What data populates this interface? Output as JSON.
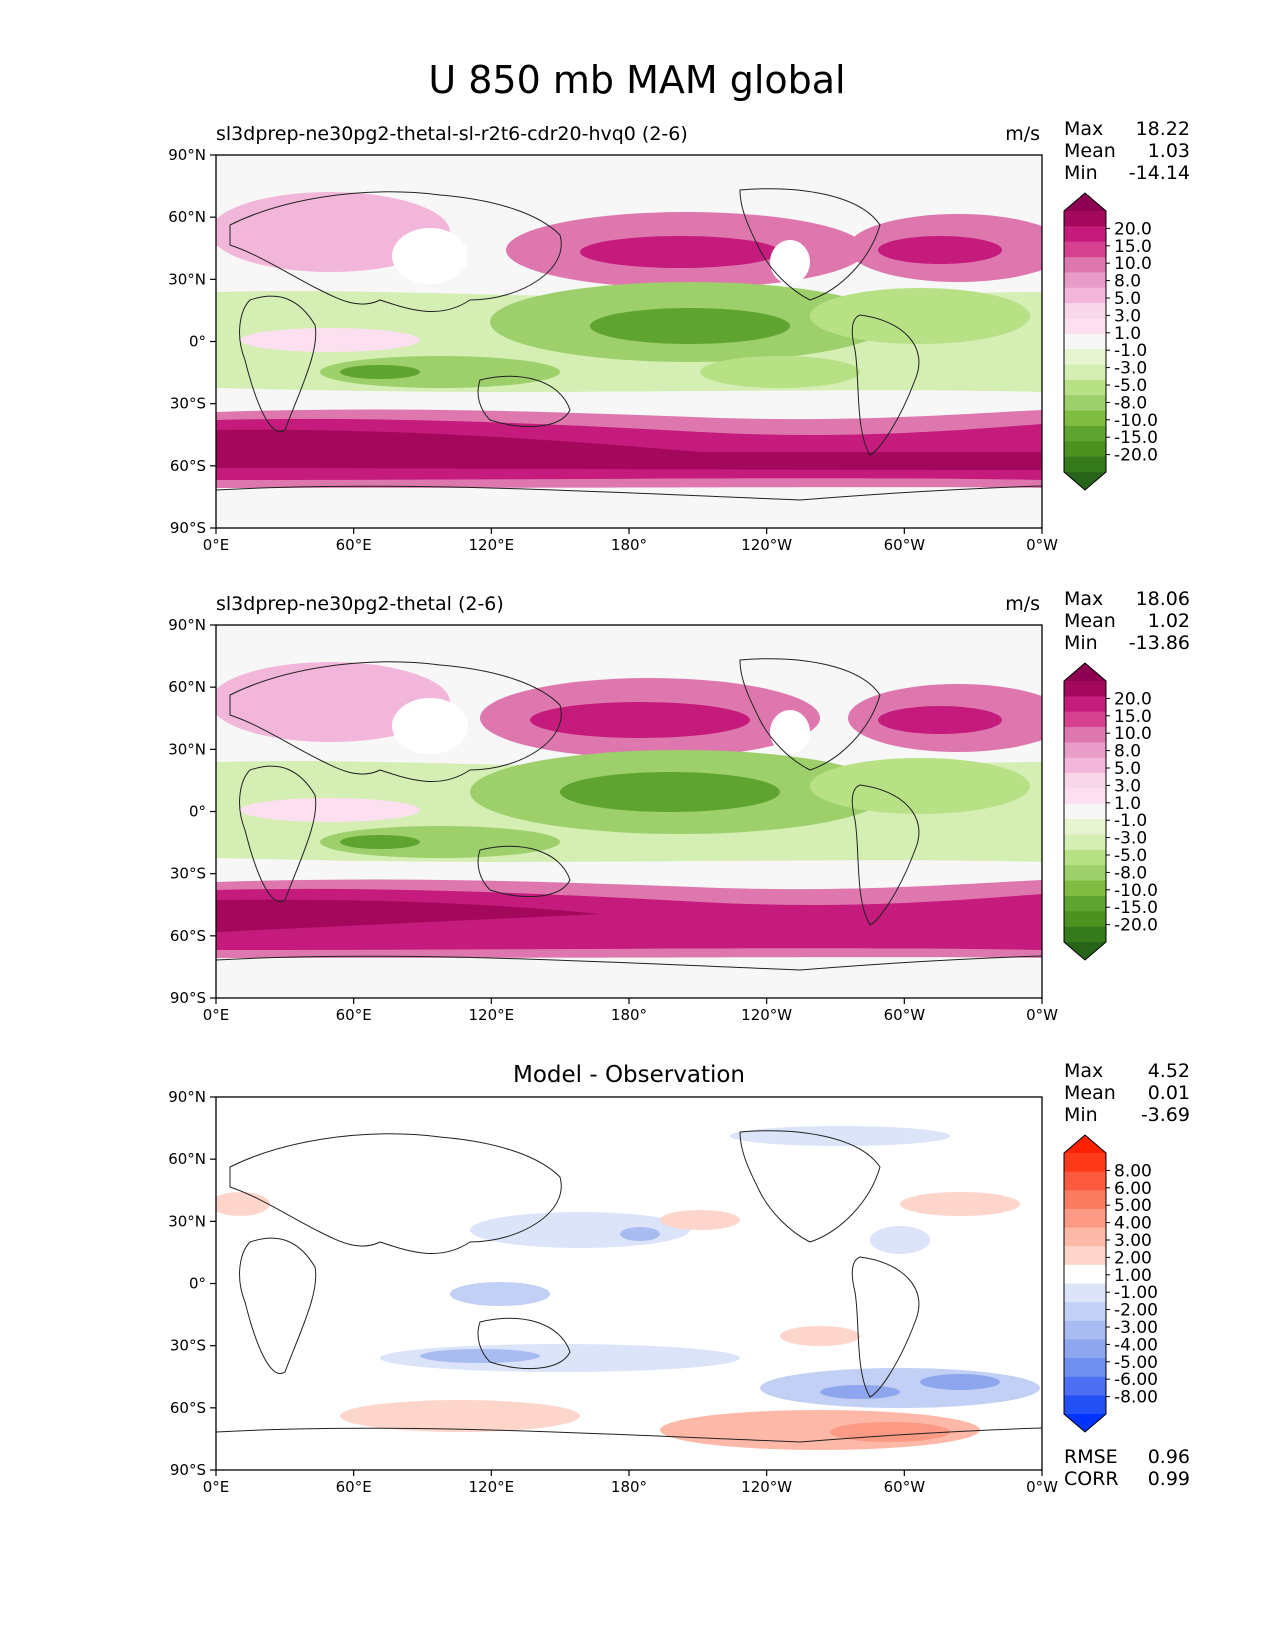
{
  "figure": {
    "title": "U 850 mb MAM global"
  },
  "axes": {
    "lat_ticks": [
      "90°N",
      "60°N",
      "30°N",
      "0°",
      "30°S",
      "60°S",
      "90°S"
    ],
    "lon_ticks": [
      "0°E",
      "60°E",
      "120°E",
      "180°",
      "120°W",
      "60°W",
      "0°W"
    ]
  },
  "panels": [
    {
      "id": "test",
      "title_left": "sl3dprep-ne30pg2-thetal-sl-r2t6-cdr20-hvq0 (2-6)",
      "title_center": "",
      "units": "m/s",
      "stats": [
        {
          "label": "Max",
          "value": "18.22"
        },
        {
          "label": "Mean",
          "value": "1.03"
        },
        {
          "label": "Min",
          "value": "-14.14"
        }
      ],
      "colorbar": "main"
    },
    {
      "id": "ref",
      "title_left": "sl3dprep-ne30pg2-thetal (2-6)",
      "title_center": "",
      "units": "m/s",
      "stats": [
        {
          "label": "Max",
          "value": "18.06"
        },
        {
          "label": "Mean",
          "value": "1.02"
        },
        {
          "label": "Min",
          "value": "-13.86"
        }
      ],
      "colorbar": "main"
    },
    {
      "id": "diff",
      "title_left": "",
      "title_center": "Model - Observation",
      "units": "",
      "stats": [
        {
          "label": "Max",
          "value": "4.52"
        },
        {
          "label": "Mean",
          "value": "0.01"
        },
        {
          "label": "Min",
          "value": "-3.69"
        }
      ],
      "colorbar": "diff",
      "metrics": [
        {
          "label": "RMSE",
          "value": "0.96"
        },
        {
          "label": "CORR",
          "value": "0.99"
        }
      ]
    }
  ],
  "colorbars": {
    "main": {
      "labels": [
        "20.0",
        "15.0",
        "10.0",
        "8.0",
        "5.0",
        "3.0",
        "1.0",
        "-1.0",
        "-3.0",
        "-5.0",
        "-8.0",
        "-10.0",
        "-15.0",
        "-20.0"
      ],
      "colors": [
        "#8e0152",
        "#a3085c",
        "#c51b7d",
        "#d6418f",
        "#de77ae",
        "#ea9cc8",
        "#f1b6da",
        "#f8d7ea",
        "#fde0ef",
        "#f7f7f7",
        "#e6f5d0",
        "#d4eeb4",
        "#b8e186",
        "#9dcf6a",
        "#7fbc41",
        "#5fa431",
        "#4d9221",
        "#357a1b",
        "#276419"
      ]
    },
    "diff": {
      "labels": [
        "8.00",
        "6.00",
        "5.00",
        "4.00",
        "3.00",
        "2.00",
        "1.00",
        "-1.00",
        "-2.00",
        "-3.00",
        "-4.00",
        "-5.00",
        "-6.00",
        "-8.00"
      ],
      "colors": [
        "#ff2200",
        "#ff3a18",
        "#fc5a3e",
        "#fb7b60",
        "#fc9a85",
        "#fdb8a8",
        "#fed5cb",
        "#ffffff",
        "#dce4fa",
        "#c3d0f6",
        "#a9bcf2",
        "#8ea6ee",
        "#718ff0",
        "#4c6ef2",
        "#2350f5",
        "#0033ff"
      ]
    }
  }
}
